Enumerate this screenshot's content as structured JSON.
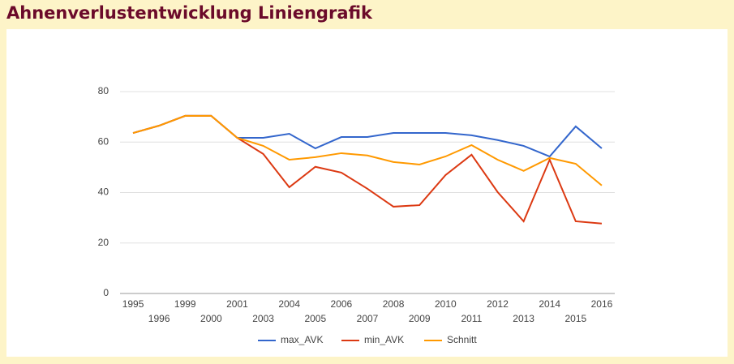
{
  "title": "Ahnenverlustentwicklung Liniengrafik",
  "chart_data": {
    "type": "line",
    "categories": [
      "1995",
      "1996",
      "1999",
      "2000",
      "2001",
      "2003",
      "2004",
      "2005",
      "2006",
      "2007",
      "2008",
      "2009",
      "2010",
      "2011",
      "2012",
      "2013",
      "2014",
      "2015",
      "2016"
    ],
    "series": [
      {
        "name": "max_AVK",
        "color": "#3366cc",
        "values": [
          63.6,
          66.5,
          70.4,
          70.4,
          61.7,
          61.7,
          63.3,
          57.5,
          62,
          62,
          63.6,
          63.6,
          63.6,
          62.7,
          60.8,
          58.5,
          54.3,
          66.2,
          57.5
        ]
      },
      {
        "name": "min_AVK",
        "color": "#dc3912",
        "values": [
          63.6,
          66.5,
          70.4,
          70.4,
          61.7,
          55.3,
          42.1,
          50.2,
          47.9,
          41.5,
          34.4,
          35,
          46.9,
          55,
          40.2,
          28.6,
          53,
          28.6,
          27.7
        ]
      },
      {
        "name": "Schnitt",
        "color": "#ff9900",
        "values": [
          63.6,
          66.5,
          70.4,
          70.4,
          61.7,
          58.5,
          53,
          54,
          55.6,
          54.7,
          52.1,
          51.1,
          54.3,
          58.8,
          53,
          48.6,
          53.7,
          51.4,
          42.8
        ]
      }
    ],
    "ylim": [
      0,
      80
    ],
    "yticks": [
      0,
      20,
      40,
      60,
      80
    ],
    "grid": true,
    "legend": "bottom"
  }
}
